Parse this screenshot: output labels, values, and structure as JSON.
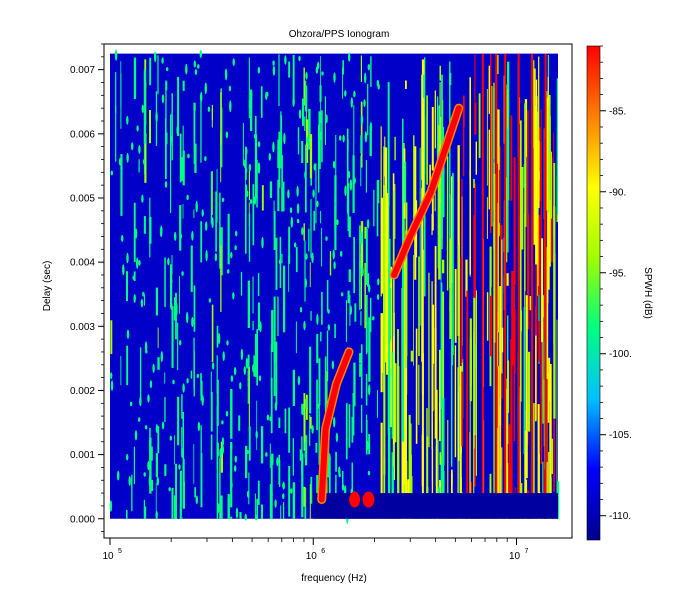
{
  "chart_data": {
    "type": "heatmap",
    "title": "Ohzora/PPS  Ionogram",
    "xlabel": "frequency (Hz)",
    "ylabel": "Delay (sec)",
    "colorbar_label": "SPWH (dB)",
    "x_scale": "log",
    "xlim": [
      100000,
      16000000
    ],
    "ylim": [
      -0.0003,
      0.0074
    ],
    "data_extent": {
      "x": [
        100000,
        16000000
      ],
      "y": [
        0.0,
        0.00725
      ]
    },
    "x_ticks": [
      {
        "base": "10",
        "exp": "5"
      },
      {
        "base": "10",
        "exp": "6"
      },
      {
        "base": "10",
        "exp": "7"
      }
    ],
    "y_ticks": [
      "0.000",
      "0.001",
      "0.002",
      "0.003",
      "0.004",
      "0.005",
      "0.006",
      "0.007"
    ],
    "y_tick_values": [
      0,
      0.001,
      0.002,
      0.003,
      0.004,
      0.005,
      0.006,
      0.007
    ],
    "colorbar_range": [
      -111.5,
      -81
    ],
    "colorbar_ticks": [
      "-85.",
      "-90.",
      "-95.",
      "-100.",
      "-105.",
      "-110."
    ],
    "colorbar_tick_values": [
      -85,
      -90,
      -95,
      -100,
      -105,
      -110
    ],
    "colormap": [
      "#00008b",
      "#0000ff",
      "#00c0ff",
      "#00ff80",
      "#a0ff00",
      "#ffff00",
      "#ff8000",
      "#ff0000"
    ],
    "traces": [
      {
        "points": [
          [
            1100000,
            0.0003
          ],
          [
            1150000,
            0.0014
          ],
          [
            1300000,
            0.0021
          ],
          [
            1500000,
            0.0026
          ]
        ]
      },
      {
        "points": [
          [
            2500000,
            0.0038
          ],
          [
            3000000,
            0.0044
          ],
          [
            3800000,
            0.0051
          ],
          [
            4500000,
            0.0058
          ],
          [
            5200000,
            0.0064
          ]
        ]
      }
    ]
  }
}
